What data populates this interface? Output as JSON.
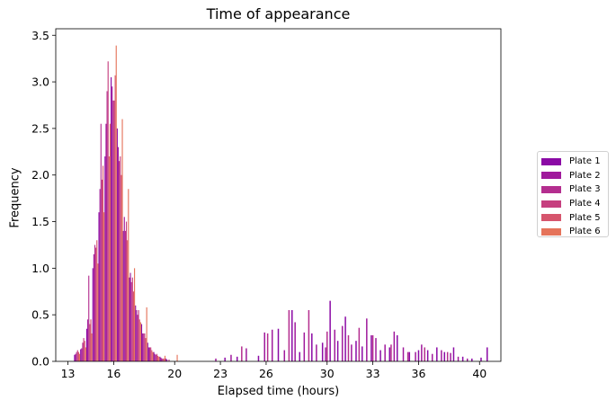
{
  "chart_data": {
    "type": "bar",
    "title": "Time of appearance",
    "xlabel": "Elapsed time (hours)",
    "ylabel": "Frequency",
    "xlim": [
      12.2,
      41.4
    ],
    "ylim": [
      0,
      3.57
    ],
    "xticks": [
      "13",
      "16",
      "20",
      "23",
      "26",
      "30",
      "33",
      "36",
      "40"
    ],
    "xtick_values": [
      13,
      16,
      20,
      23,
      26,
      30,
      33,
      36,
      40
    ],
    "yticks": [
      "0.0",
      "0.5",
      "1.0",
      "1.5",
      "2.0",
      "2.5",
      "3.0",
      "3.5"
    ],
    "ytick_values": [
      0,
      0.5,
      1,
      1.5,
      2,
      2.5,
      3,
      3.5
    ],
    "grid": false,
    "legend_position": "right",
    "bin_width_hours": 0.4,
    "bin_starts": [
      13.4,
      13.8,
      14.2,
      14.6,
      15.0,
      15.4,
      15.8,
      16.2,
      16.6,
      17.0,
      17.4,
      17.8,
      18.2,
      18.6,
      19.0,
      19.4,
      19.8,
      20.2
    ],
    "series": [
      {
        "name": "Plate 1",
        "color": "#8b0aa5",
        "values": [
          0.07,
          0.13,
          0.35,
          1.0,
          1.6,
          2.2,
          3.05,
          2.5,
          1.4,
          0.9,
          0.6,
          0.4,
          0.2,
          0.1,
          0.05,
          0.03,
          0,
          0
        ],
        "late_x": [
          23.3,
          24.1,
          25.5,
          26.8,
          27.7,
          28.2,
          29.0,
          29.7,
          30.2,
          30.7,
          31.2,
          31.9,
          32.3,
          32.9,
          33.5,
          34.1,
          34.6,
          35.4,
          36.0,
          36.6,
          37.2,
          37.7,
          38.3,
          38.9,
          39.5,
          40.1,
          40.5
        ],
        "late_y": [
          0.04,
          0.05,
          0.06,
          0.35,
          0.55,
          0.1,
          0.3,
          0.2,
          0.65,
          0.22,
          0.48,
          0.22,
          0.16,
          0.28,
          0.12,
          0.15,
          0.28,
          0.1,
          0.12,
          0.12,
          0.15,
          0.1,
          0.15,
          0.05,
          0.03,
          0.04,
          0.15
        ]
      },
      {
        "name": "Plate 2",
        "color": "#a01a9c",
        "values": [
          0.08,
          0.14,
          0.45,
          1.15,
          1.85,
          2.55,
          2.95,
          2.3,
          1.55,
          0.95,
          0.55,
          0.3,
          0.15,
          0.08,
          0.04,
          0.02,
          0,
          0
        ],
        "late_x": [
          22.7,
          23.7,
          24.7,
          25.9,
          26.4,
          27.2,
          27.9,
          28.5,
          29.3,
          29.9,
          30.5,
          31.0,
          31.6,
          32.6,
          33.2,
          33.8,
          34.4,
          35.0,
          35.8,
          36.2,
          36.9,
          37.5,
          38.1,
          38.6,
          39.2
        ],
        "late_y": [
          0.03,
          0.07,
          0.14,
          0.31,
          0.34,
          0.12,
          0.42,
          0.31,
          0.18,
          0.15,
          0.34,
          0.38,
          0.18,
          0.46,
          0.25,
          0.18,
          0.32,
          0.15,
          0.1,
          0.18,
          0.08,
          0.12,
          0.09,
          0.05,
          0.03
        ]
      },
      {
        "name": "Plate 3",
        "color": "#b42e8f",
        "values": [
          0.1,
          0.2,
          0.92,
          1.25,
          2.55,
          2.9,
          2.8,
          2.15,
          1.4,
          0.85,
          0.5,
          0.3,
          0.15,
          0.07,
          0.03,
          0,
          0,
          0
        ],
        "late_x": [
          24.4,
          26.1,
          27.5,
          28.8,
          30.0,
          31.4,
          32.1,
          33.0,
          34.2,
          35.3,
          36.4,
          37.9
        ],
        "late_y": [
          0.16,
          0.3,
          0.55,
          0.55,
          0.32,
          0.28,
          0.36,
          0.28,
          0.18,
          0.1,
          0.15,
          0.1
        ]
      },
      {
        "name": "Plate 4",
        "color": "#c63f7f",
        "values": [
          0.12,
          0.25,
          0.4,
          1.22,
          1.95,
          3.22,
          2.8,
          2.2,
          1.5,
          0.9,
          0.55,
          0.3,
          0.15,
          0.08,
          0.03,
          0.02,
          0,
          0
        ],
        "late_x": [],
        "late_y": []
      },
      {
        "name": "Plate 5",
        "color": "#d6556d",
        "values": [
          0.1,
          0.22,
          0.45,
          1.3,
          2.1,
          2.2,
          3.07,
          2.0,
          1.3,
          0.75,
          0.45,
          0.25,
          0.12,
          0.06,
          0.03,
          0,
          0,
          0
        ],
        "late_x": [],
        "late_y": []
      },
      {
        "name": "Plate 6",
        "color": "#e5735a",
        "values": [
          0.08,
          0.15,
          0.3,
          1.05,
          1.6,
          2.55,
          3.39,
          2.6,
          1.85,
          1.0,
          0.42,
          0.58,
          0.1,
          0.05,
          0.06,
          0,
          0.07,
          0
        ],
        "late_x": [],
        "late_y": []
      }
    ]
  }
}
